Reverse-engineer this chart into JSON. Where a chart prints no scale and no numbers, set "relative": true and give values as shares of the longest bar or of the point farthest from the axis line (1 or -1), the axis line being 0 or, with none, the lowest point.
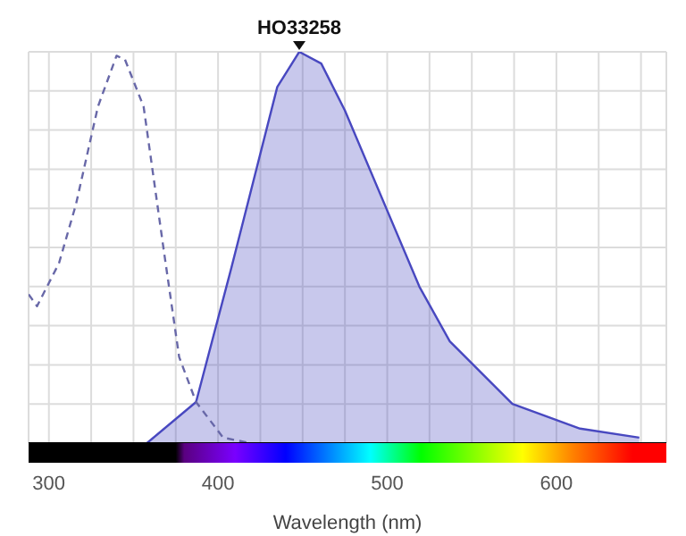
{
  "chart_data": {
    "type": "area",
    "relative": true,
    "xlabel": "Wavelength (nm)",
    "xlim": [
      288,
      665
    ],
    "xticks": [
      300,
      {
        "value": 325,
        "label": null
      },
      {
        "value": 350,
        "label": null
      },
      {
        "value": 375,
        "label": null
      },
      400,
      {
        "value": 425,
        "label": null
      },
      {
        "value": 450,
        "label": null
      },
      {
        "value": 475,
        "label": null
      },
      500,
      {
        "value": 525,
        "label": null
      },
      {
        "value": 550,
        "label": null
      },
      {
        "value": 575,
        "label": null
      },
      600,
      {
        "value": 625,
        "label": null
      },
      {
        "value": 650,
        "label": null
      }
    ],
    "grid": true,
    "annotations": [
      {
        "text": "HO33258",
        "x": 448,
        "y": 1
      }
    ],
    "series": [
      {
        "type": "line",
        "line_style": "dashed",
        "color": "#6868a8",
        "x": [
          288,
          293,
          306,
          316,
          329,
          340,
          345,
          356,
          368,
          377,
          387,
          403,
          419
        ],
        "values": [
          0.38,
          0.35,
          0.46,
          0.61,
          0.86,
          0.99,
          0.98,
          0.86,
          0.49,
          0.22,
          0.105,
          0.014,
          0
        ]
      },
      {
        "line_style": "solid",
        "color": "#4848c0",
        "x": [
          358,
          387,
          408,
          435,
          448,
          461,
          475,
          519,
          537,
          574,
          614,
          649
        ],
        "values": [
          0,
          0.105,
          0.45,
          0.91,
          1,
          0.97,
          0.85,
          0.4,
          0.26,
          0.1,
          0.037,
          0.014
        ]
      }
    ]
  }
}
